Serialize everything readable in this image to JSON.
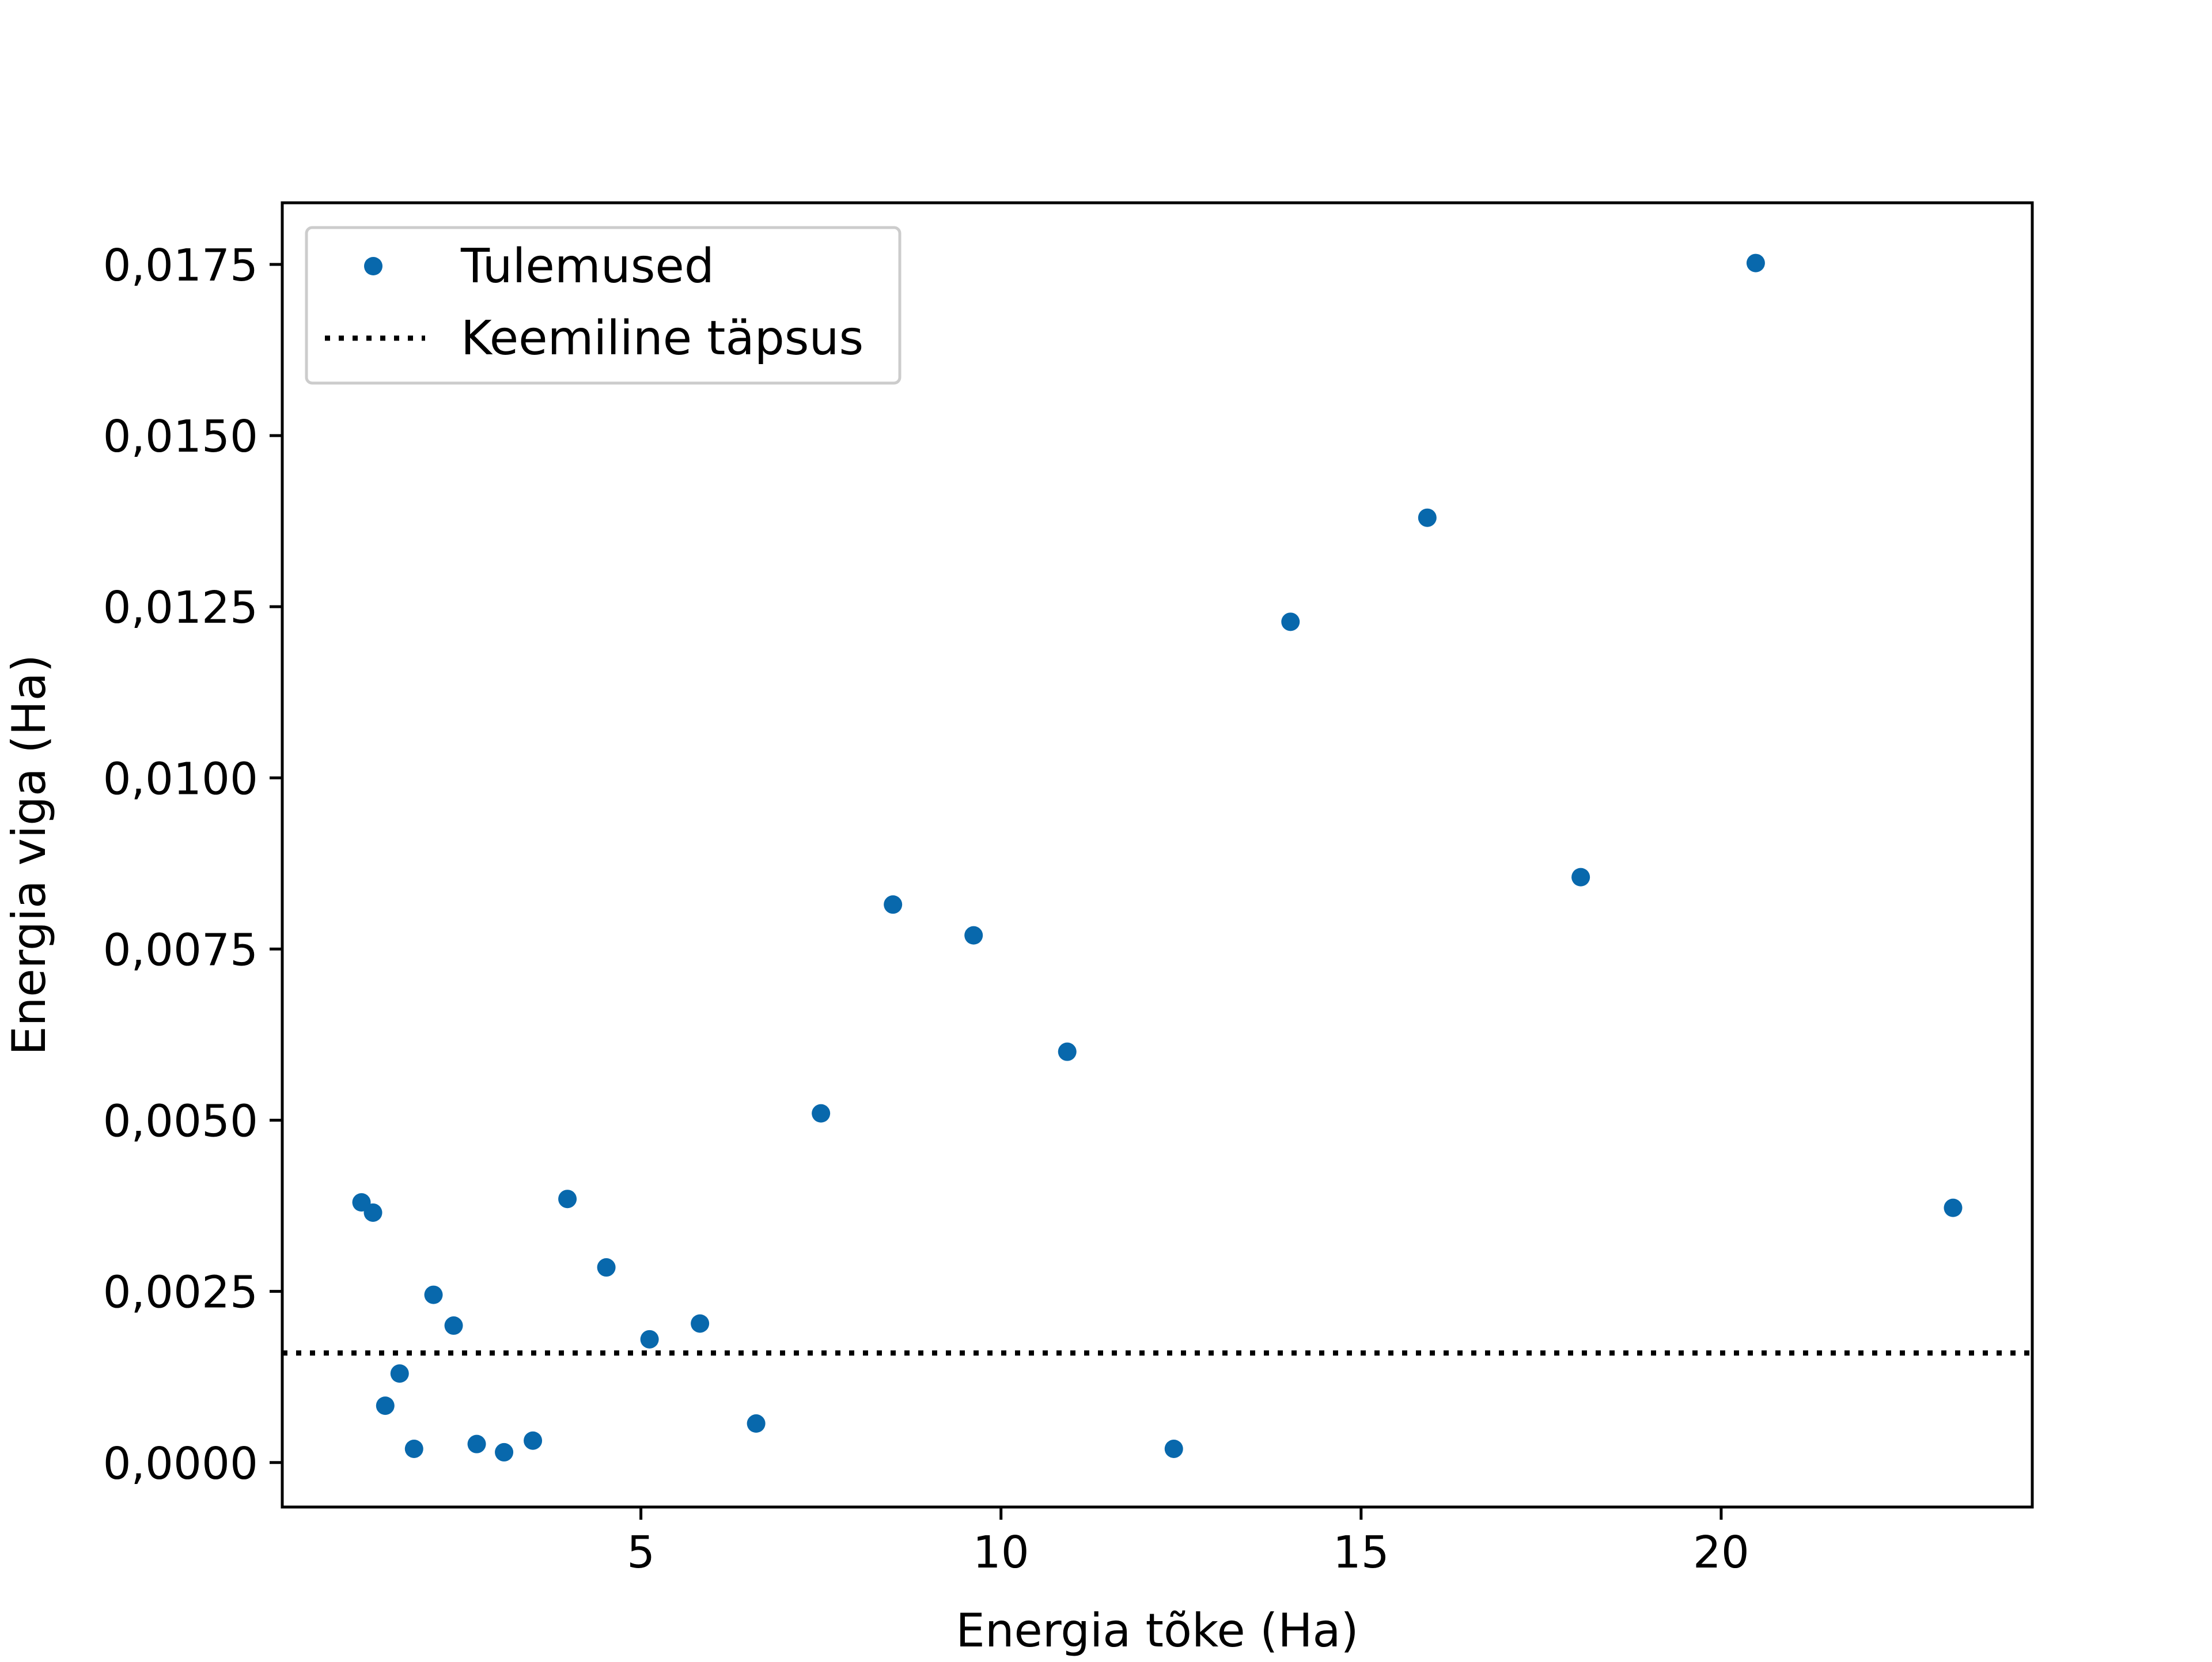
{
  "chart_data": {
    "type": "scatter",
    "xlabel": "Energia tõke (Ha)",
    "ylabel": "Energia viga (Ha)",
    "xlim": [
      0.02,
      24.32
    ],
    "ylim": [
      -0.00065,
      0.0184
    ],
    "xticks": [
      5,
      10,
      15,
      20
    ],
    "xtick_labels": [
      "5",
      "10",
      "15",
      "20"
    ],
    "yticks": [
      0.0,
      0.0025,
      0.005,
      0.0075,
      0.01,
      0.0125,
      0.015,
      0.0175
    ],
    "ytick_labels": [
      "0,0000",
      "0,0025",
      "0,0050",
      "0,0075",
      "0,0100",
      "0,0125",
      "0,0150",
      "0,0175"
    ],
    "grid": false,
    "legend_position": "top-left",
    "series": [
      {
        "name": "Tulemused",
        "kind": "scatter",
        "color": "#0868ac",
        "points": [
          [
            1.12,
            0.0038
          ],
          [
            1.28,
            0.00365
          ],
          [
            1.45,
            0.00083
          ],
          [
            1.65,
            0.0013
          ],
          [
            1.85,
            0.0002
          ],
          [
            2.12,
            0.00245
          ],
          [
            2.4,
            0.002
          ],
          [
            2.72,
            0.00027
          ],
          [
            3.1,
            0.00015
          ],
          [
            3.5,
            0.00032
          ],
          [
            3.98,
            0.00385
          ],
          [
            4.52,
            0.00285
          ],
          [
            5.12,
            0.0018
          ],
          [
            5.82,
            0.00203
          ],
          [
            6.6,
            0.00057
          ],
          [
            7.5,
            0.0051
          ],
          [
            8.5,
            0.00815
          ],
          [
            9.62,
            0.0077
          ],
          [
            10.92,
            0.006
          ],
          [
            12.4,
            0.0002
          ],
          [
            14.02,
            0.01228
          ],
          [
            15.92,
            0.0138
          ],
          [
            18.05,
            0.00855
          ],
          [
            20.48,
            0.01752
          ],
          [
            23.22,
            0.00372
          ]
        ]
      },
      {
        "name": "Keemiline täpsus",
        "kind": "hline",
        "color": "#000000",
        "linestyle": "dotted",
        "y": 0.0016
      }
    ]
  }
}
